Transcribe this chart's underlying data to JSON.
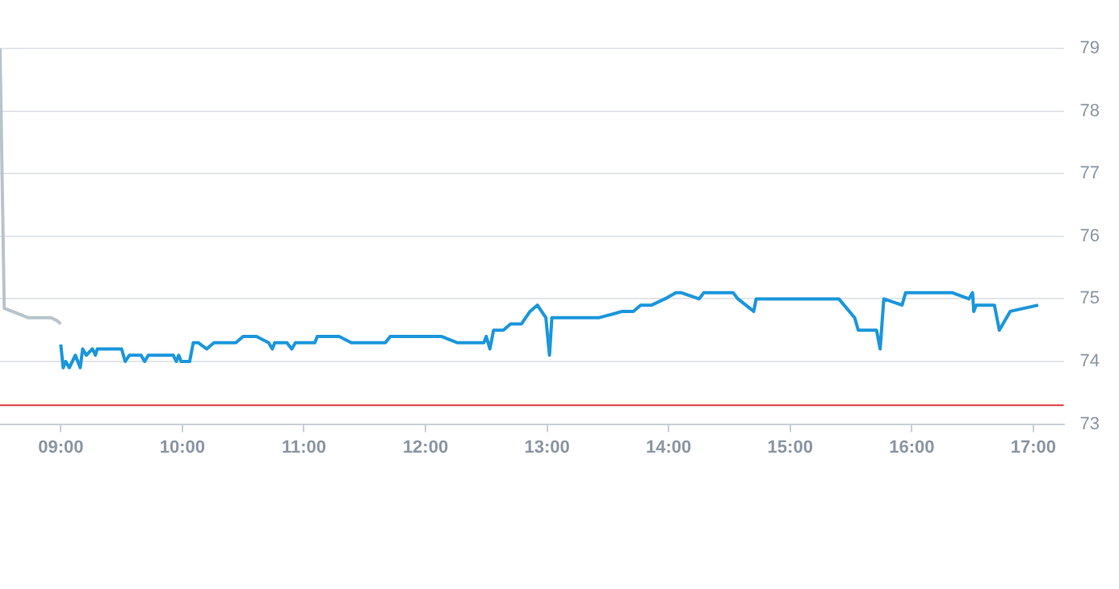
{
  "chart_data": {
    "type": "line",
    "xlim": [
      8.5,
      17.25
    ],
    "ylim": [
      73,
      79
    ],
    "xticks": [
      {
        "value": 9,
        "label": "09:00"
      },
      {
        "value": 10,
        "label": "10:00"
      },
      {
        "value": 11,
        "label": "11:00"
      },
      {
        "value": 12,
        "label": "12:00"
      },
      {
        "value": 13,
        "label": "13:00"
      },
      {
        "value": 14,
        "label": "14:00"
      },
      {
        "value": 15,
        "label": "15:00"
      },
      {
        "value": 16,
        "label": "16:00"
      },
      {
        "value": 17,
        "label": "17:00"
      }
    ],
    "yticks": [
      73,
      74,
      75,
      76,
      77,
      78,
      79
    ],
    "grid": "y",
    "marker": "none",
    "ref_lines": [
      {
        "axis": "y",
        "value": 73.3,
        "color": "#e03a3a"
      }
    ],
    "series": [
      {
        "color": "#b8c4cc",
        "x": [
          8.5,
          8.535,
          8.6,
          8.73,
          8.92,
          8.97,
          9.0
        ],
        "values": [
          79.0,
          74.85,
          74.8,
          74.7,
          74.7,
          74.65,
          74.6
        ]
      },
      {
        "color": "#1a96dc",
        "x": [
          9.0,
          9.02,
          9.04,
          9.07,
          9.12,
          9.16,
          9.18,
          9.21,
          9.26,
          9.285,
          9.3,
          9.5,
          9.53,
          9.565,
          9.66,
          9.69,
          9.72,
          9.925,
          9.95,
          9.97,
          9.99,
          10.06,
          10.09,
          10.13,
          10.2,
          10.26,
          10.44,
          10.5,
          10.61,
          10.71,
          10.74,
          10.76,
          10.86,
          10.9,
          10.93,
          11.09,
          11.11,
          11.29,
          11.39,
          11.67,
          11.71,
          12.13,
          12.26,
          12.48,
          12.5,
          12.53,
          12.56,
          12.64,
          12.7,
          12.79,
          12.86,
          12.92,
          12.99,
          13.02,
          13.04,
          13.43,
          13.62,
          13.71,
          13.77,
          13.86,
          13.97,
          14.06,
          14.1,
          14.25,
          14.29,
          14.53,
          14.57,
          14.7,
          14.72,
          15.4,
          15.53,
          15.56,
          15.71,
          15.74,
          15.77,
          15.92,
          15.95,
          16.33,
          16.47,
          16.5,
          16.51,
          16.53,
          16.68,
          16.72,
          16.81,
          17.04
        ],
        "values": [
          74.27,
          73.9,
          74.0,
          73.9,
          74.1,
          73.9,
          74.2,
          74.1,
          74.2,
          74.1,
          74.2,
          74.2,
          74.0,
          74.1,
          74.1,
          74.0,
          74.1,
          74.1,
          74.0,
          74.1,
          74.0,
          74.0,
          74.3,
          74.3,
          74.2,
          74.3,
          74.3,
          74.4,
          74.4,
          74.3,
          74.2,
          74.3,
          74.3,
          74.2,
          74.3,
          74.3,
          74.4,
          74.4,
          74.3,
          74.3,
          74.4,
          74.4,
          74.3,
          74.3,
          74.4,
          74.2,
          74.5,
          74.5,
          74.6,
          74.6,
          74.8,
          74.9,
          74.7,
          74.1,
          74.7,
          74.7,
          74.8,
          74.8,
          74.9,
          74.9,
          75.0,
          75.1,
          75.1,
          75.0,
          75.1,
          75.1,
          75.0,
          74.8,
          75.0,
          75.0,
          74.7,
          74.5,
          74.5,
          74.2,
          75.0,
          74.9,
          75.1,
          75.1,
          75.0,
          75.1,
          74.8,
          74.9,
          74.9,
          74.5,
          74.8,
          74.9
        ]
      }
    ]
  }
}
